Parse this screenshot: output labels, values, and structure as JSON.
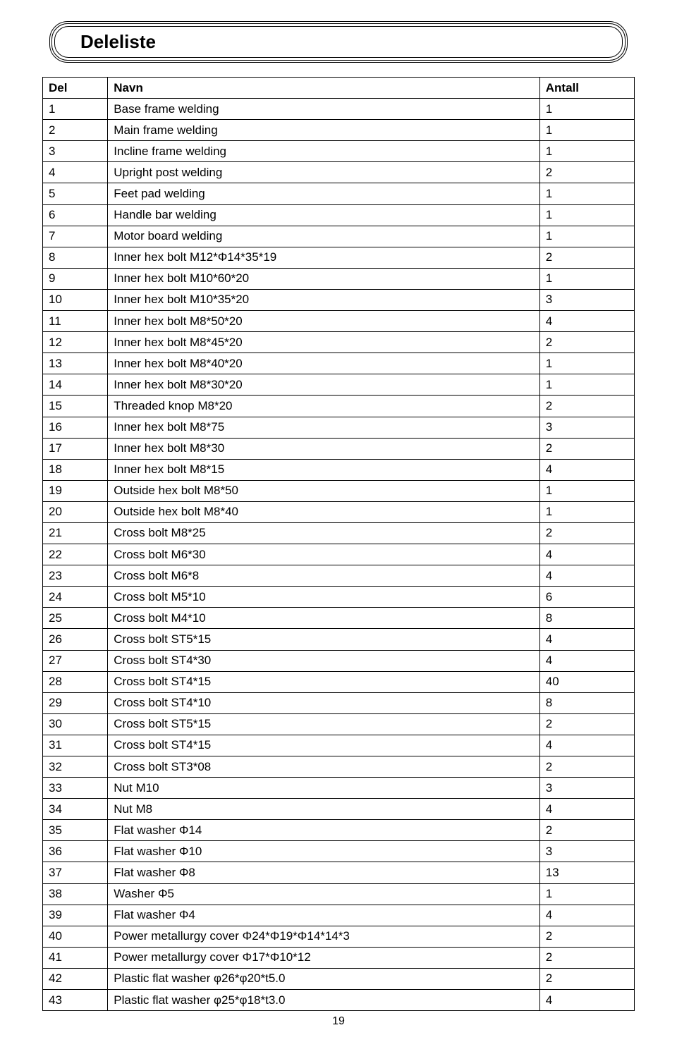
{
  "title": "Deleliste",
  "columns": [
    "Del",
    "Navn",
    "Antall"
  ],
  "rows": [
    [
      "1",
      "Base frame welding",
      "1"
    ],
    [
      "2",
      "Main frame welding",
      "1"
    ],
    [
      "3",
      "Incline frame welding",
      "1"
    ],
    [
      "4",
      "Upright post welding",
      "2"
    ],
    [
      "5",
      "Feet pad welding",
      "1"
    ],
    [
      "6",
      "Handle bar welding",
      "1"
    ],
    [
      "7",
      "Motor board welding",
      "1"
    ],
    [
      "8",
      "Inner hex bolt M12*Φ14*35*19",
      "2"
    ],
    [
      "9",
      "Inner hex bolt M10*60*20",
      "1"
    ],
    [
      "10",
      "Inner hex bolt M10*35*20",
      "3"
    ],
    [
      "11",
      "Inner hex bolt M8*50*20",
      "4"
    ],
    [
      "12",
      "Inner hex bolt M8*45*20",
      "2"
    ],
    [
      "13",
      "Inner hex bolt M8*40*20",
      "1"
    ],
    [
      "14",
      "Inner hex bolt M8*30*20",
      "1"
    ],
    [
      "15",
      "Threaded knop M8*20",
      "2"
    ],
    [
      "16",
      "Inner hex bolt M8*75",
      "3"
    ],
    [
      "17",
      "Inner hex bolt M8*30",
      "2"
    ],
    [
      "18",
      "Inner hex bolt M8*15",
      "4"
    ],
    [
      "19",
      "Outside hex bolt M8*50",
      "1"
    ],
    [
      "20",
      "Outside hex bolt M8*40",
      "1"
    ],
    [
      "21",
      "Cross bolt M8*25",
      "2"
    ],
    [
      "22",
      "Cross bolt M6*30",
      "4"
    ],
    [
      "23",
      "Cross bolt M6*8",
      "4"
    ],
    [
      "24",
      "Cross bolt M5*10",
      "6"
    ],
    [
      "25",
      "Cross bolt M4*10",
      "8"
    ],
    [
      "26",
      "Cross bolt ST5*15",
      "4"
    ],
    [
      "27",
      "Cross bolt ST4*30",
      "4"
    ],
    [
      "28",
      "Cross bolt ST4*15",
      "40"
    ],
    [
      "29",
      "Cross bolt ST4*10",
      "8"
    ],
    [
      "30",
      "Cross bolt ST5*15",
      "2"
    ],
    [
      "31",
      "Cross bolt ST4*15",
      "4"
    ],
    [
      "32",
      "Cross bolt ST3*08",
      "2"
    ],
    [
      "33",
      "Nut  M10",
      "3"
    ],
    [
      "34",
      "Nut M8",
      "4"
    ],
    [
      "35",
      "Flat washer Φ14",
      "2"
    ],
    [
      "36",
      "Flat washer Φ10",
      "3"
    ],
    [
      "37",
      "Flat washer Φ8",
      "13"
    ],
    [
      "38",
      "Washer Φ5",
      "1"
    ],
    [
      "39",
      "Flat washer Φ4",
      "4"
    ],
    [
      "40",
      "Power metallurgy cover  Φ24*Φ19*Φ14*14*3",
      "2"
    ],
    [
      "41",
      "Power metallurgy cover  Φ17*Φ10*12",
      "2"
    ],
    [
      "42",
      "Plastic flat washer     φ26*φ20*t5.0",
      "2"
    ],
    [
      "43",
      "Plastic flat washer     φ25*φ18*t3.0",
      "4"
    ]
  ],
  "page_number": "19"
}
